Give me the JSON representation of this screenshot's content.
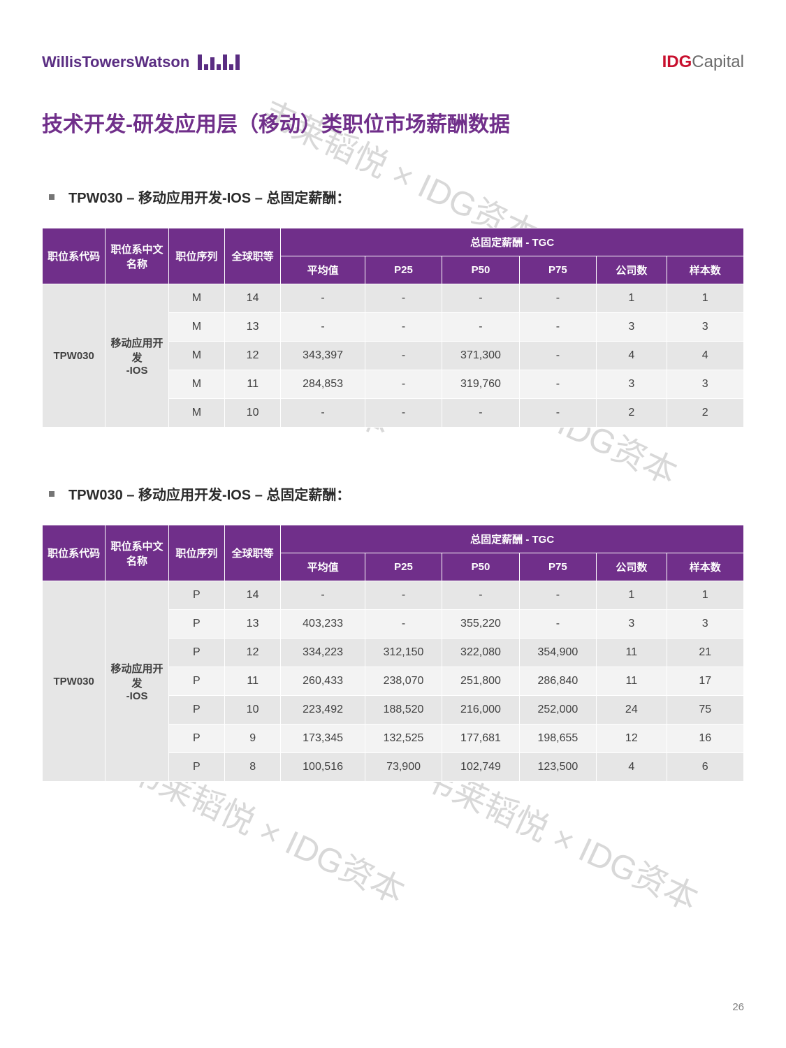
{
  "header": {
    "logo_left": "WillisTowersWatson",
    "logo_right_bold": "IDG",
    "logo_right_light": "Capital"
  },
  "page_title": "技术开发-研发应用层（移动）类职位市场薪酬数据",
  "page_number": "26",
  "watermark_text": "韦莱韬悦 × IDG资本",
  "colors": {
    "brand_purple": "#702f8a",
    "idg_red": "#c8102e",
    "row_even": "#e6e6e6",
    "row_odd": "#f3f3f3",
    "text": "#404040",
    "watermark": "#d8d8d8"
  },
  "sections": [
    {
      "label": "TPW030 – 移动应用开发-IOS – 总固定薪酬：",
      "code": "TPW030",
      "name_cn": "移动应用开发-IOS",
      "header_group": "总固定薪酬 - TGC",
      "columns_fixed": [
        "职位系代码",
        "职位系中文名称",
        "职位序列",
        "全球职等"
      ],
      "columns_metric": [
        "平均值",
        "P25",
        "P50",
        "P75",
        "公司数",
        "样本数"
      ],
      "rows": [
        {
          "seq": "M",
          "level": "14",
          "avg": "-",
          "p25": "-",
          "p50": "-",
          "p75": "-",
          "comp": "1",
          "samp": "1"
        },
        {
          "seq": "M",
          "level": "13",
          "avg": "-",
          "p25": "-",
          "p50": "-",
          "p75": "-",
          "comp": "3",
          "samp": "3"
        },
        {
          "seq": "M",
          "level": "12",
          "avg": "343,397",
          "p25": "-",
          "p50": "371,300",
          "p75": "-",
          "comp": "4",
          "samp": "4"
        },
        {
          "seq": "M",
          "level": "11",
          "avg": "284,853",
          "p25": "-",
          "p50": "319,760",
          "p75": "-",
          "comp": "3",
          "samp": "3"
        },
        {
          "seq": "M",
          "level": "10",
          "avg": "-",
          "p25": "-",
          "p50": "-",
          "p75": "-",
          "comp": "2",
          "samp": "2"
        }
      ]
    },
    {
      "label": "TPW030 – 移动应用开发-IOS – 总固定薪酬：",
      "code": "TPW030",
      "name_cn": "移动应用开发-IOS",
      "header_group": "总固定薪酬 - TGC",
      "columns_fixed": [
        "职位系代码",
        "职位系中文名称",
        "职位序列",
        "全球职等"
      ],
      "columns_metric": [
        "平均值",
        "P25",
        "P50",
        "P75",
        "公司数",
        "样本数"
      ],
      "rows": [
        {
          "seq": "P",
          "level": "14",
          "avg": "-",
          "p25": "-",
          "p50": "-",
          "p75": "-",
          "comp": "1",
          "samp": "1"
        },
        {
          "seq": "P",
          "level": "13",
          "avg": "403,233",
          "p25": "-",
          "p50": "355,220",
          "p75": "-",
          "comp": "3",
          "samp": "3"
        },
        {
          "seq": "P",
          "level": "12",
          "avg": "334,223",
          "p25": "312,150",
          "p50": "322,080",
          "p75": "354,900",
          "comp": "11",
          "samp": "21"
        },
        {
          "seq": "P",
          "level": "11",
          "avg": "260,433",
          "p25": "238,070",
          "p50": "251,800",
          "p75": "286,840",
          "comp": "11",
          "samp": "17"
        },
        {
          "seq": "P",
          "level": "10",
          "avg": "223,492",
          "p25": "188,520",
          "p50": "216,000",
          "p75": "252,000",
          "comp": "24",
          "samp": "75"
        },
        {
          "seq": "P",
          "level": "9",
          "avg": "173,345",
          "p25": "132,525",
          "p50": "177,681",
          "p75": "198,655",
          "comp": "12",
          "samp": "16"
        },
        {
          "seq": "P",
          "level": "8",
          "avg": "100,516",
          "p25": "73,900",
          "p50": "102,749",
          "p75": "123,500",
          "comp": "4",
          "samp": "6"
        }
      ]
    }
  ]
}
